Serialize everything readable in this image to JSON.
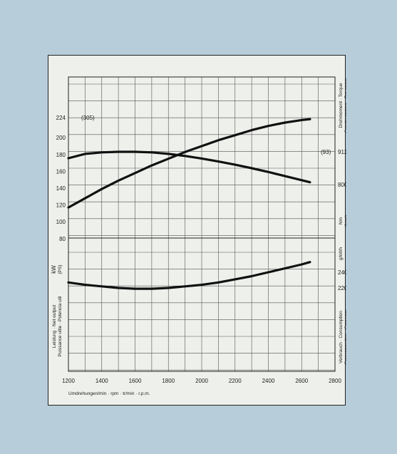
{
  "chart_data": {
    "type": "line",
    "x": [
      1200,
      1300,
      1400,
      1500,
      1600,
      1700,
      1800,
      1900,
      2000,
      2100,
      2200,
      2300,
      2400,
      2500,
      2600,
      2650
    ],
    "xlabel": "Umdrehungen/min · rpm · tr/min · r.p.m.",
    "xlim": [
      1200,
      2800
    ],
    "xticks": [
      "1200",
      "1400",
      "1600",
      "1800",
      "2000",
      "2200",
      "2400",
      "2600",
      "2800"
    ],
    "series": [
      {
        "axis": "power",
        "values": [
          117,
          128,
          139,
          149,
          158,
          167,
          175,
          183,
          190,
          197,
          203,
          209,
          214,
          218,
          221,
          222
        ]
      },
      {
        "axis": "torque",
        "values": [
          890,
          905,
          910,
          912,
          912,
          910,
          905,
          898,
          889,
          879,
          868,
          856,
          843,
          829,
          815,
          808
        ]
      },
      {
        "axis": "consumption",
        "values": [
          227,
          224,
          222,
          220,
          219,
          219,
          220,
          222,
          224,
          227,
          231,
          235,
          240,
          245,
          250,
          253
        ]
      }
    ],
    "left_axis": {
      "ticks": [
        "224",
        "200",
        "180",
        "160",
        "140",
        "120",
        "100",
        "80"
      ],
      "top_annotation": "(305)",
      "unit": "kW",
      "unit2": "(PS)",
      "label_line1": "Leistung · Net output",
      "label_line2": "Puissance utile · Potencia util"
    },
    "right_axis_torque": {
      "ticks": [
        "912",
        "800"
      ],
      "annotation": "(93)",
      "unit": "Nm",
      "unit2": "(kpm)",
      "label_line1": "Drehmoment · Torque",
      "label_line2": "Couple moteur · Par motor"
    },
    "right_axis_consumption": {
      "ticks": [
        "240",
        "220"
      ],
      "unit": "g/kWh",
      "label_line1": "Verbrauch · Consumption",
      "label_line2": "Consommation · Consumo"
    }
  }
}
